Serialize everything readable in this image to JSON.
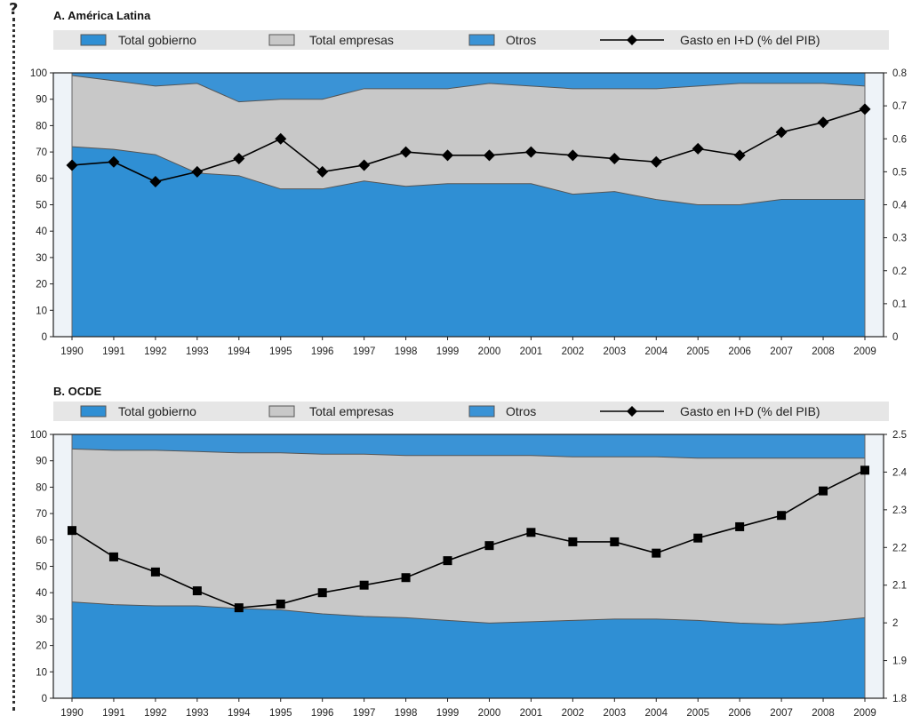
{
  "chart_data": [
    {
      "type": "area",
      "title": "A. América Latina",
      "legend": [
        "Total gobierno",
        "Total empresas",
        "Otros",
        "Gasto en I+D (% del PIB)"
      ],
      "colors": {
        "gobierno": "#2f8fd4",
        "empresas": "#c8c8c8",
        "otros": "#3a93d6",
        "line": "#000000"
      },
      "x": [
        "1990",
        "1991",
        "1992",
        "1993",
        "1994",
        "1995",
        "1996",
        "1997",
        "1998",
        "1999",
        "2000",
        "2001",
        "2002",
        "2003",
        "2004",
        "2005",
        "2006",
        "2007",
        "2008",
        "2009"
      ],
      "ylim_left": [
        0,
        100
      ],
      "yticks_left": [
        "0",
        "10",
        "20",
        "30",
        "40",
        "50",
        "60",
        "70",
        "80",
        "90",
        "100"
      ],
      "ylim_right": [
        0,
        0.8
      ],
      "yticks_right": [
        "0",
        "0.1",
        "0.2",
        "0.3",
        "0.4",
        "0.5",
        "0.6",
        "0.7",
        "0.8"
      ],
      "series": [
        {
          "name": "Total gobierno",
          "values": [
            72,
            71,
            69,
            62,
            61,
            56,
            56,
            59,
            57,
            58,
            58,
            58,
            54,
            55,
            52,
            50,
            50,
            52,
            52,
            52
          ]
        },
        {
          "name": "Total empresas",
          "values": [
            27,
            26,
            26,
            34,
            28,
            34,
            34,
            35,
            37,
            36,
            38,
            37,
            40,
            39,
            42,
            45,
            46,
            44,
            44,
            43
          ]
        },
        {
          "name": "Otros",
          "values": [
            1,
            3,
            5,
            4,
            11,
            10,
            10,
            6,
            6,
            6,
            4,
            5,
            6,
            6,
            6,
            5,
            4,
            4,
            4,
            5
          ]
        },
        {
          "name": "Gasto en I+D (% del PIB)",
          "axis": "right",
          "marker": "diamond",
          "values": [
            0.52,
            0.53,
            0.47,
            0.5,
            0.54,
            0.6,
            0.5,
            0.52,
            0.56,
            0.55,
            0.55,
            0.56,
            0.55,
            0.54,
            0.53,
            0.57,
            0.55,
            0.62,
            0.65,
            0.69
          ]
        }
      ]
    },
    {
      "type": "area",
      "title": "B. OCDE",
      "legend": [
        "Total gobierno",
        "Total empresas",
        "Otros",
        "Gasto en I+D (% del PIB)"
      ],
      "colors": {
        "gobierno": "#2f8fd4",
        "empresas": "#c8c8c8",
        "otros": "#3a93d6",
        "line": "#000000"
      },
      "x": [
        "1990",
        "1991",
        "1992",
        "1993",
        "1994",
        "1995",
        "1996",
        "1997",
        "1998",
        "1999",
        "2000",
        "2001",
        "2002",
        "2003",
        "2004",
        "2005",
        "2006",
        "2007",
        "2008",
        "2009"
      ],
      "ylim_left": [
        0,
        100
      ],
      "yticks_left": [
        "0",
        "10",
        "20",
        "30",
        "40",
        "50",
        "60",
        "70",
        "80",
        "90",
        "100"
      ],
      "ylim_right": [
        1.8,
        2.5
      ],
      "yticks_right": [
        "1.8",
        "1.9",
        "2",
        "2.1",
        "2.2",
        "2.3",
        "2.4",
        "2.5"
      ],
      "series": [
        {
          "name": "Total gobierno",
          "values": [
            36.5,
            35.5,
            35,
            35,
            34,
            33.5,
            32,
            31,
            30.5,
            29.5,
            28.5,
            29,
            29.5,
            30,
            30,
            29.5,
            28.5,
            28,
            29,
            30.5
          ]
        },
        {
          "name": "Total empresas",
          "values": [
            58,
            58.5,
            59,
            58.5,
            59,
            59.5,
            60.5,
            61.5,
            61.5,
            62.5,
            63.5,
            63,
            62,
            61.5,
            61.5,
            61.5,
            62.5,
            63,
            62,
            60.5
          ]
        },
        {
          "name": "Otros",
          "values": [
            5.5,
            6,
            6,
            6.5,
            7,
            7,
            7.5,
            7.5,
            8,
            8,
            8,
            8,
            8.5,
            8.5,
            8.5,
            9,
            9,
            9,
            9,
            9
          ]
        },
        {
          "name": "Gasto en I+D (% del PIB)",
          "axis": "right",
          "marker": "square",
          "values": [
            2.245,
            2.175,
            2.135,
            2.085,
            2.04,
            2.05,
            2.08,
            2.1,
            2.12,
            2.165,
            2.205,
            2.24,
            2.215,
            2.215,
            2.185,
            2.225,
            2.255,
            2.285,
            2.35,
            2.405
          ]
        }
      ]
    }
  ]
}
